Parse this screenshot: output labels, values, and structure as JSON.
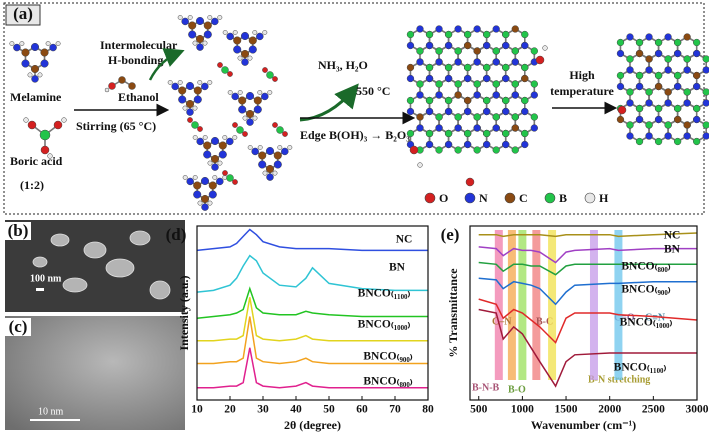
{
  "schematic": {
    "label": "(a)",
    "melamine": "Melamine",
    "boric_acid": "Boric acid",
    "ratio": "(1:2)",
    "hbond": [
      "Intermolecular",
      "H-bonding"
    ],
    "ethanol": "Ethanol",
    "stirring": "Stirring (65 °C)",
    "gases": "NH₃, H₂O",
    "temp": "550 °C",
    "edge": "Edge B(OH)₃ → B₂O₃",
    "high": [
      "High",
      "temperature"
    ],
    "atoms": [
      {
        "symbol": "O",
        "color": "#d42020"
      },
      {
        "symbol": "N",
        "color": "#2234d8"
      },
      {
        "symbol": "C",
        "color": "#8a4a12"
      },
      {
        "symbol": "B",
        "color": "#22c44a"
      },
      {
        "symbol": "H",
        "color": "#e8e8e8"
      }
    ]
  },
  "sem": {
    "label": "(b)",
    "scale": "100 nm"
  },
  "tem": {
    "label": "(c)",
    "scale": "10 nm"
  },
  "chart_data": [
    {
      "type": "line",
      "label": "(d)",
      "xlabel": "2θ (degree)",
      "ylabel": "Intensity (a.u.)",
      "x": [
        10,
        15,
        20,
        22,
        24,
        26,
        28,
        30,
        35,
        40,
        43,
        45,
        50,
        60,
        70,
        80
      ],
      "xlim": [
        10,
        80
      ],
      "xticks": [
        10,
        20,
        30,
        40,
        50,
        60,
        70,
        80
      ],
      "ylim": [
        0,
        100
      ],
      "series": [
        {
          "name": "NC",
          "color": "#2f4fe0",
          "values": [
            86,
            87,
            88,
            90,
            94,
            98,
            95,
            91,
            88,
            87,
            87,
            87,
            87,
            86,
            86,
            86
          ]
        },
        {
          "name": "BN",
          "color": "#2fc4d4",
          "values": [
            62,
            63,
            66,
            70,
            77,
            83,
            80,
            73,
            66,
            65,
            70,
            76,
            67,
            64,
            63,
            63
          ]
        },
        {
          "name": "BNCO₍₁₁₀₀₎",
          "color": "#22c422",
          "values": [
            47,
            48,
            49,
            50,
            52,
            64,
            53,
            50,
            49,
            49,
            51,
            50,
            49,
            48,
            48,
            48
          ]
        },
        {
          "name": "BNCO₍₁₀₀₀₎",
          "color": "#e2d41e",
          "values": [
            34,
            34,
            35,
            35,
            37,
            59,
            37,
            35,
            34,
            35,
            37,
            35,
            34,
            34,
            34,
            34
          ]
        },
        {
          "name": "BNCO₍₉₀₀₎",
          "color": "#f2a21e",
          "values": [
            21,
            21,
            22,
            22,
            24,
            48,
            24,
            22,
            21,
            22,
            24,
            22,
            21,
            21,
            21,
            21
          ]
        },
        {
          "name": "BNCO₍₈₀₀₎",
          "color": "#e0208e",
          "values": [
            7,
            7,
            8,
            8,
            10,
            30,
            10,
            8,
            7,
            8,
            10,
            8,
            7,
            7,
            7,
            7
          ]
        }
      ]
    },
    {
      "type": "line",
      "label": "(e)",
      "xlabel": "Wavenumber (cm⁻¹)",
      "ylabel": "% Transmittance",
      "x": [
        500,
        700,
        780,
        900,
        1000,
        1100,
        1200,
        1380,
        1500,
        1600,
        2000,
        2100,
        2500,
        3000
      ],
      "xlim": [
        400,
        3000
      ],
      "xticks": [
        500,
        1000,
        1500,
        2000,
        2500,
        3000
      ],
      "ylim": [
        0,
        100
      ],
      "bands": [
        {
          "x": 730,
          "color": "#f07aa8",
          "text": "B-N-B"
        },
        {
          "x": 880,
          "color": "#f4a64a",
          "text": "C–N"
        },
        {
          "x": 1000,
          "color": "#9ae05a",
          "text": "B-O"
        },
        {
          "x": 1160,
          "color": "#f07a7a",
          "text": "B-C"
        },
        {
          "x": 1340,
          "color": "#f0e04a",
          "text": "B-N stretching"
        },
        {
          "x": 1820,
          "color": "#c49ae8",
          "text": "C=O"
        },
        {
          "x": 2100,
          "color": "#6ac4ec",
          "text": "C≡N"
        }
      ],
      "series": [
        {
          "name": "NC",
          "color": "#a8901a",
          "values": [
            95,
            95,
            94,
            95,
            95,
            95,
            95,
            94,
            95,
            95,
            95,
            94,
            95,
            96
          ]
        },
        {
          "name": "BN",
          "color": "#a040c4",
          "values": [
            88,
            87,
            83,
            87,
            86,
            86,
            85,
            79,
            85,
            86,
            87,
            86,
            87,
            87
          ]
        },
        {
          "name": "BNCO₍₈₀₀₎",
          "color": "#22a040",
          "values": [
            79,
            78,
            74,
            78,
            78,
            77,
            77,
            72,
            77,
            78,
            78,
            78,
            78,
            78
          ]
        },
        {
          "name": "BNCO₍₉₀₀₎",
          "color": "#1f6fd0",
          "values": [
            70,
            69,
            64,
            68,
            67,
            66,
            64,
            55,
            62,
            66,
            67,
            67,
            68,
            68
          ]
        },
        {
          "name": "BNCO₍₁₀₀₀₎",
          "color": "#e02a2a",
          "values": [
            58,
            55,
            47,
            52,
            50,
            46,
            42,
            33,
            47,
            50,
            50,
            49,
            48,
            46
          ]
        },
        {
          "name": "BNCO₍₁₁₀₀₎",
          "color": "#a01a3a",
          "values": [
            52,
            50,
            35,
            42,
            38,
            30,
            22,
            8,
            22,
            26,
            27,
            27,
            27,
            27
          ]
        }
      ]
    }
  ]
}
